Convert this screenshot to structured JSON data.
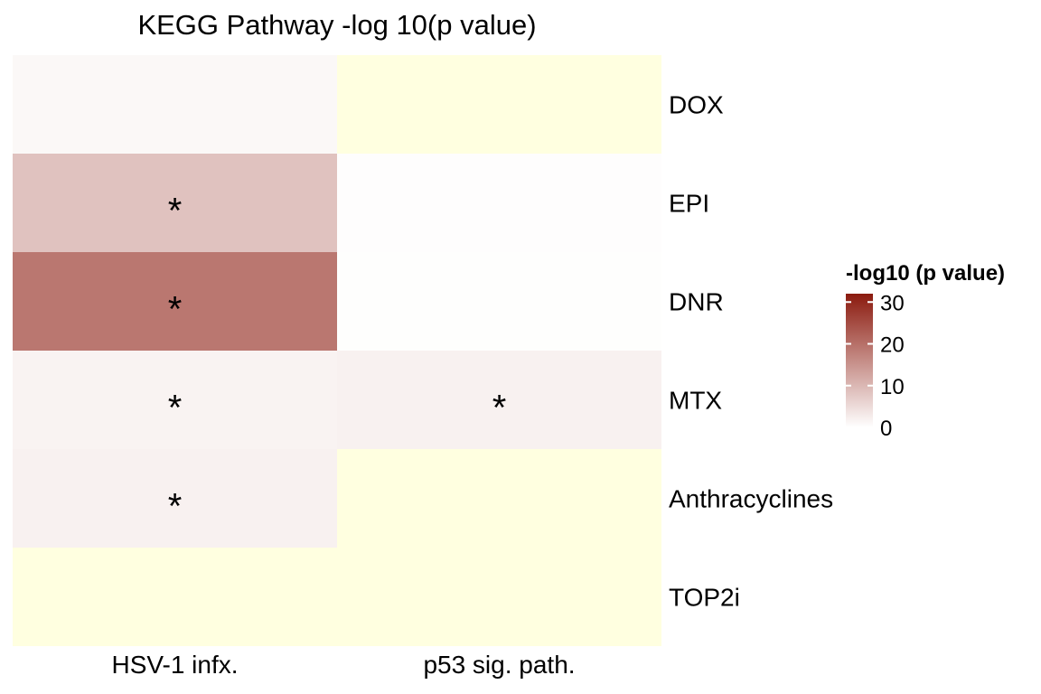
{
  "chart_data": {
    "type": "heatmap",
    "title": "KEGG Pathway -log 10(p value)",
    "columns": [
      "HSV-1  infx.",
      "p53 sig. path."
    ],
    "rows": [
      "DOX",
      "EPI",
      "DNR",
      "MTX",
      "Anthracyclines",
      "TOP2i"
    ],
    "values": [
      [
        1.0,
        null
      ],
      [
        8.5,
        0.3
      ],
      [
        19.0,
        0.2
      ],
      [
        1.7,
        2.0
      ],
      [
        2.0,
        null
      ],
      [
        null,
        null
      ]
    ],
    "significant": [
      [
        false,
        false
      ],
      [
        true,
        false
      ],
      [
        true,
        false
      ],
      [
        true,
        true
      ],
      [
        true,
        false
      ],
      [
        false,
        false
      ]
    ],
    "missing_color": "#ffffe0",
    "legend": {
      "title": "-log10 (p value)",
      "min": 0,
      "max": 32,
      "ticks": [
        0,
        10,
        20,
        30
      ],
      "low_color": "#ffffff",
      "high_color": "#8b1a0e",
      "position": "right"
    },
    "significance_mark": "*"
  }
}
